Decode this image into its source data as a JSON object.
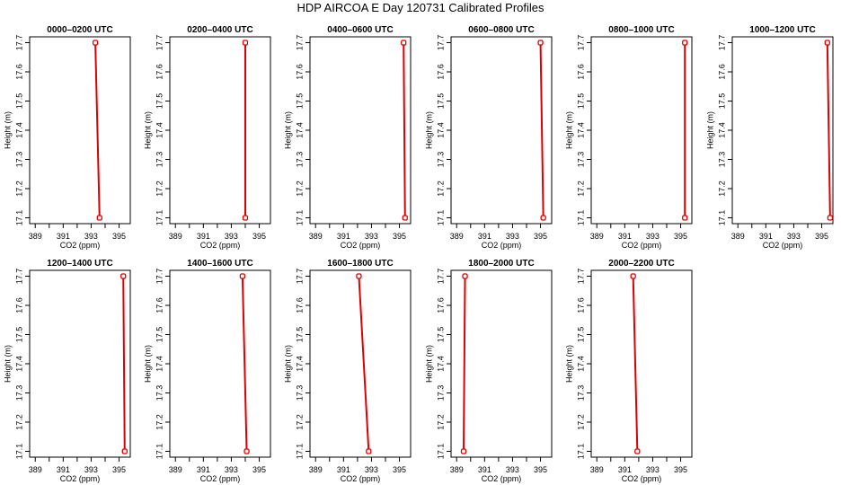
{
  "page_title": "HDP AIRCOA E  Day 120731  Calibrated Profiles",
  "chart_data": [
    {
      "type": "line",
      "title": "0000–0200 UTC",
      "xlabel": "CO2 (ppm)",
      "ylabel": "Height (m)",
      "xlim": [
        388.6,
        395.8
      ],
      "ylim": [
        17.08,
        17.72
      ],
      "x_ticks": [
        389,
        391,
        393,
        395
      ],
      "y_ticks": [
        17.1,
        17.2,
        17.3,
        17.4,
        17.5,
        17.6,
        17.7
      ],
      "series": [
        {
          "x": [
            393.3,
            393.6
          ],
          "y": [
            17.7,
            17.1
          ]
        }
      ]
    },
    {
      "type": "line",
      "title": "0200–0400 UTC",
      "xlabel": "CO2 (ppm)",
      "ylabel": "Height (m)",
      "xlim": [
        388.6,
        395.8
      ],
      "ylim": [
        17.08,
        17.72
      ],
      "x_ticks": [
        389,
        391,
        393,
        395
      ],
      "y_ticks": [
        17.1,
        17.2,
        17.3,
        17.4,
        17.5,
        17.6,
        17.7
      ],
      "series": [
        {
          "x": [
            394.0,
            394.0
          ],
          "y": [
            17.7,
            17.1
          ]
        }
      ]
    },
    {
      "type": "line",
      "title": "0400–0600 UTC",
      "xlabel": "CO2 (ppm)",
      "ylabel": "Height (m)",
      "xlim": [
        388.6,
        395.8
      ],
      "ylim": [
        17.08,
        17.72
      ],
      "x_ticks": [
        389,
        391,
        393,
        395
      ],
      "y_ticks": [
        17.1,
        17.2,
        17.3,
        17.4,
        17.5,
        17.6,
        17.7
      ],
      "series": [
        {
          "x": [
            395.3,
            395.4
          ],
          "y": [
            17.7,
            17.1
          ]
        }
      ]
    },
    {
      "type": "line",
      "title": "0600–0800 UTC",
      "xlabel": "CO2 (ppm)",
      "ylabel": "Height (m)",
      "xlim": [
        388.6,
        395.8
      ],
      "ylim": [
        17.08,
        17.72
      ],
      "x_ticks": [
        389,
        391,
        393,
        395
      ],
      "y_ticks": [
        17.1,
        17.2,
        17.3,
        17.4,
        17.5,
        17.6,
        17.7
      ],
      "series": [
        {
          "x": [
            395.0,
            395.2
          ],
          "y": [
            17.7,
            17.1
          ]
        }
      ]
    },
    {
      "type": "line",
      "title": "0800–1000 UTC",
      "xlabel": "CO2 (ppm)",
      "ylabel": "Height (m)",
      "xlim": [
        388.6,
        395.8
      ],
      "ylim": [
        17.08,
        17.72
      ],
      "x_ticks": [
        389,
        391,
        393,
        395
      ],
      "y_ticks": [
        17.1,
        17.2,
        17.3,
        17.4,
        17.5,
        17.6,
        17.7
      ],
      "series": [
        {
          "x": [
            395.3,
            395.3
          ],
          "y": [
            17.7,
            17.1
          ]
        }
      ]
    },
    {
      "type": "line",
      "title": "1000–1200 UTC",
      "xlabel": "CO2 (ppm)",
      "ylabel": "Height (m)",
      "xlim": [
        388.6,
        395.8
      ],
      "ylim": [
        17.08,
        17.72
      ],
      "x_ticks": [
        389,
        391,
        393,
        395
      ],
      "y_ticks": [
        17.1,
        17.2,
        17.3,
        17.4,
        17.5,
        17.6,
        17.7
      ],
      "series": [
        {
          "x": [
            395.4,
            395.6
          ],
          "y": [
            17.7,
            17.1
          ]
        }
      ]
    },
    {
      "type": "line",
      "title": "1200–1400 UTC",
      "xlabel": "CO2 (ppm)",
      "ylabel": "Height (m)",
      "xlim": [
        388.6,
        395.8
      ],
      "ylim": [
        17.08,
        17.72
      ],
      "x_ticks": [
        389,
        391,
        393,
        395
      ],
      "y_ticks": [
        17.1,
        17.2,
        17.3,
        17.4,
        17.5,
        17.6,
        17.7
      ],
      "series": [
        {
          "x": [
            395.3,
            395.4
          ],
          "y": [
            17.7,
            17.1
          ]
        }
      ]
    },
    {
      "type": "line",
      "title": "1400–1600 UTC",
      "xlabel": "CO2 (ppm)",
      "ylabel": "Height (m)",
      "xlim": [
        388.6,
        395.8
      ],
      "ylim": [
        17.08,
        17.72
      ],
      "x_ticks": [
        389,
        391,
        393,
        395
      ],
      "y_ticks": [
        17.1,
        17.2,
        17.3,
        17.4,
        17.5,
        17.6,
        17.7
      ],
      "series": [
        {
          "x": [
            393.8,
            394.1
          ],
          "y": [
            17.7,
            17.1
          ]
        }
      ]
    },
    {
      "type": "line",
      "title": "1600–1800 UTC",
      "xlabel": "CO2 (ppm)",
      "ylabel": "Height (m)",
      "xlim": [
        388.6,
        395.8
      ],
      "ylim": [
        17.08,
        17.72
      ],
      "x_ticks": [
        389,
        391,
        393,
        395
      ],
      "y_ticks": [
        17.1,
        17.2,
        17.3,
        17.4,
        17.5,
        17.6,
        17.7
      ],
      "series": [
        {
          "x": [
            392.1,
            392.8
          ],
          "y": [
            17.7,
            17.1
          ]
        }
      ]
    },
    {
      "type": "line",
      "title": "1800–2000 UTC",
      "xlabel": "CO2 (ppm)",
      "ylabel": "Height (m)",
      "xlim": [
        388.6,
        395.8
      ],
      "ylim": [
        17.08,
        17.72
      ],
      "x_ticks": [
        389,
        391,
        393,
        395
      ],
      "y_ticks": [
        17.1,
        17.2,
        17.3,
        17.4,
        17.5,
        17.6,
        17.7
      ],
      "series": [
        {
          "x": [
            389.6,
            389.5
          ],
          "y": [
            17.7,
            17.1
          ]
        }
      ]
    },
    {
      "type": "line",
      "title": "2000–2200 UTC",
      "xlabel": "CO2 (ppm)",
      "ylabel": "Height (m)",
      "xlim": [
        388.6,
        395.8
      ],
      "ylim": [
        17.08,
        17.72
      ],
      "x_ticks": [
        389,
        391,
        393,
        395
      ],
      "y_ticks": [
        17.1,
        17.2,
        17.3,
        17.4,
        17.5,
        17.6,
        17.7
      ],
      "series": [
        {
          "x": [
            391.6,
            391.9
          ],
          "y": [
            17.7,
            17.1
          ]
        }
      ]
    }
  ],
  "colors": {
    "series_line": "#dd0000",
    "axis": "#000000",
    "background": "#ffffff"
  }
}
